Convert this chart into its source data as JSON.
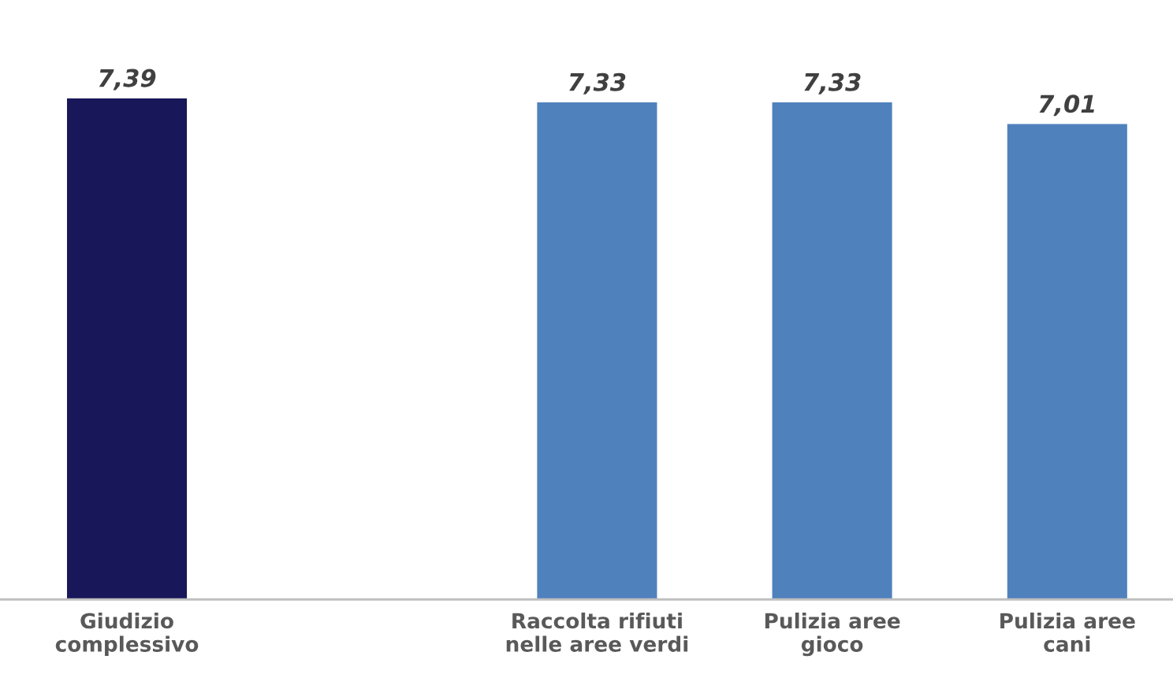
{
  "chart_data": {
    "type": "bar",
    "categories": [
      "Giudizio\ncomplessivo",
      null,
      "Raccolta rifiuti\nnelle aree verdi",
      "Pulizia aree\ngioco",
      "Pulizia aree\ncani"
    ],
    "values": [
      7.39,
      null,
      7.33,
      7.33,
      7.01
    ],
    "value_labels": [
      "7,39",
      null,
      "7,33",
      "7,33",
      "7,01"
    ],
    "colors": [
      "#18175a",
      null,
      "#4f81bd",
      "#4f81bd",
      "#4f81bd"
    ],
    "tick_labels": "x"
  }
}
